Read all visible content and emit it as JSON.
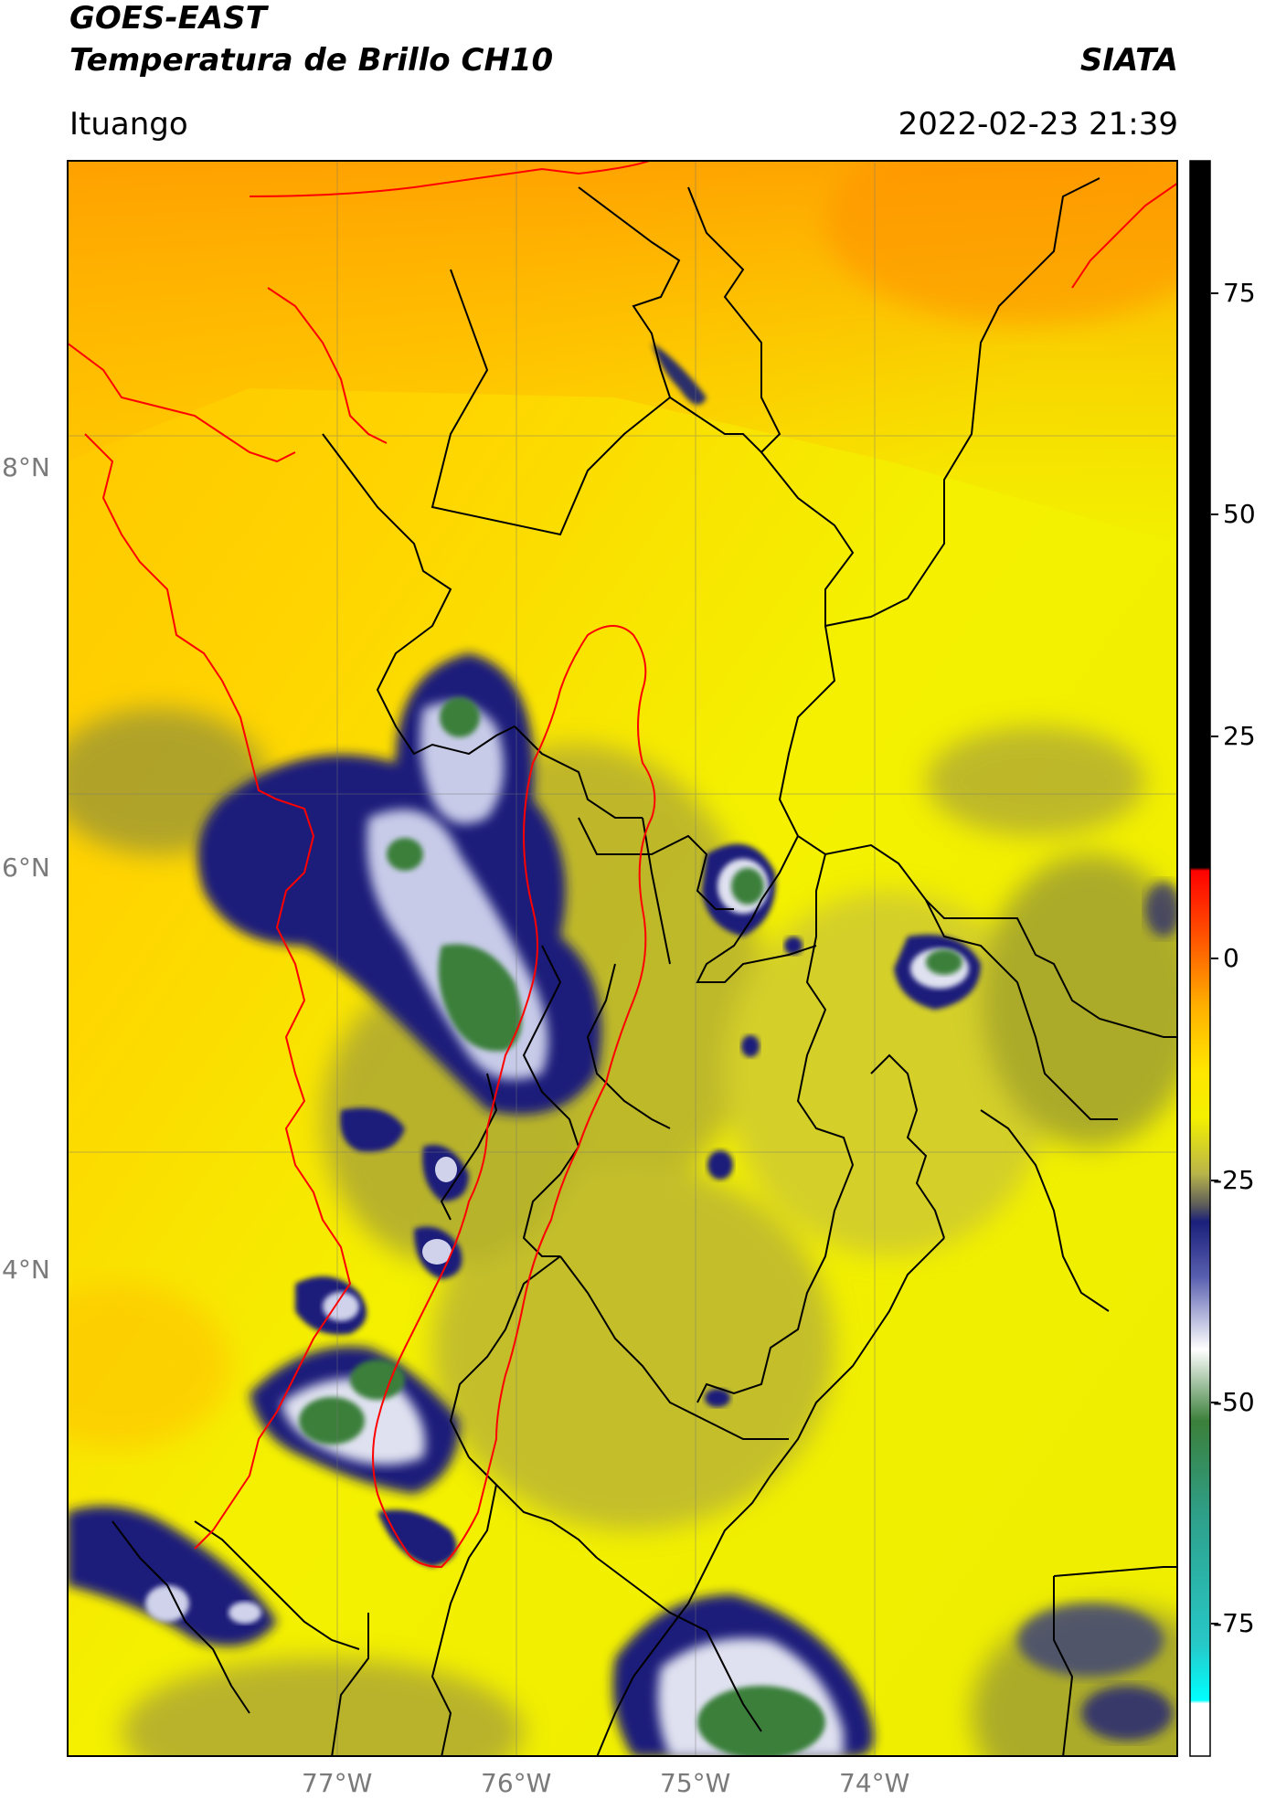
{
  "header": {
    "satellite": "GOES-EAST",
    "product": "Temperatura de Brillo CH10",
    "brand": "SIATA",
    "region": "Ituango",
    "datetime": "2022-02-23 21:39"
  },
  "map": {
    "lon_ticks": [
      "77°W",
      "76°W",
      "75°W",
      "74°W"
    ],
    "lat_ticks": [
      "8°N",
      "6°N",
      "4°N"
    ],
    "extent": {
      "lon": [
        -78.5,
        -73.0
      ],
      "lat": [
        1.7,
        9.7
      ]
    },
    "palette": {
      "warm_orange": "#ff9a00",
      "yellow": "#f4f000",
      "olive": "#8f8f3a",
      "navy": "#1a1f7a",
      "white": "#ffffff",
      "green": "#3b7f3a",
      "border_black": "#000000",
      "border_red": "#ff0000"
    },
    "cold_cloud_features": [
      "deep convection west of 76°W between 5°N and 7°N",
      "cells near 3°N-3.5°N along the Pacific coast",
      "large cell near 75°W, 2.3°N",
      "isolated cells near 75.3°W 5.9°N and 74.2°W 5.5°N"
    ]
  },
  "colorbar": {
    "ticks": [
      "75",
      "50",
      "25",
      "0",
      "-25",
      "-50",
      "-75"
    ],
    "tick_values": [
      75,
      50,
      25,
      0,
      -25,
      -50,
      -75
    ],
    "range": [
      -90,
      90
    ]
  }
}
